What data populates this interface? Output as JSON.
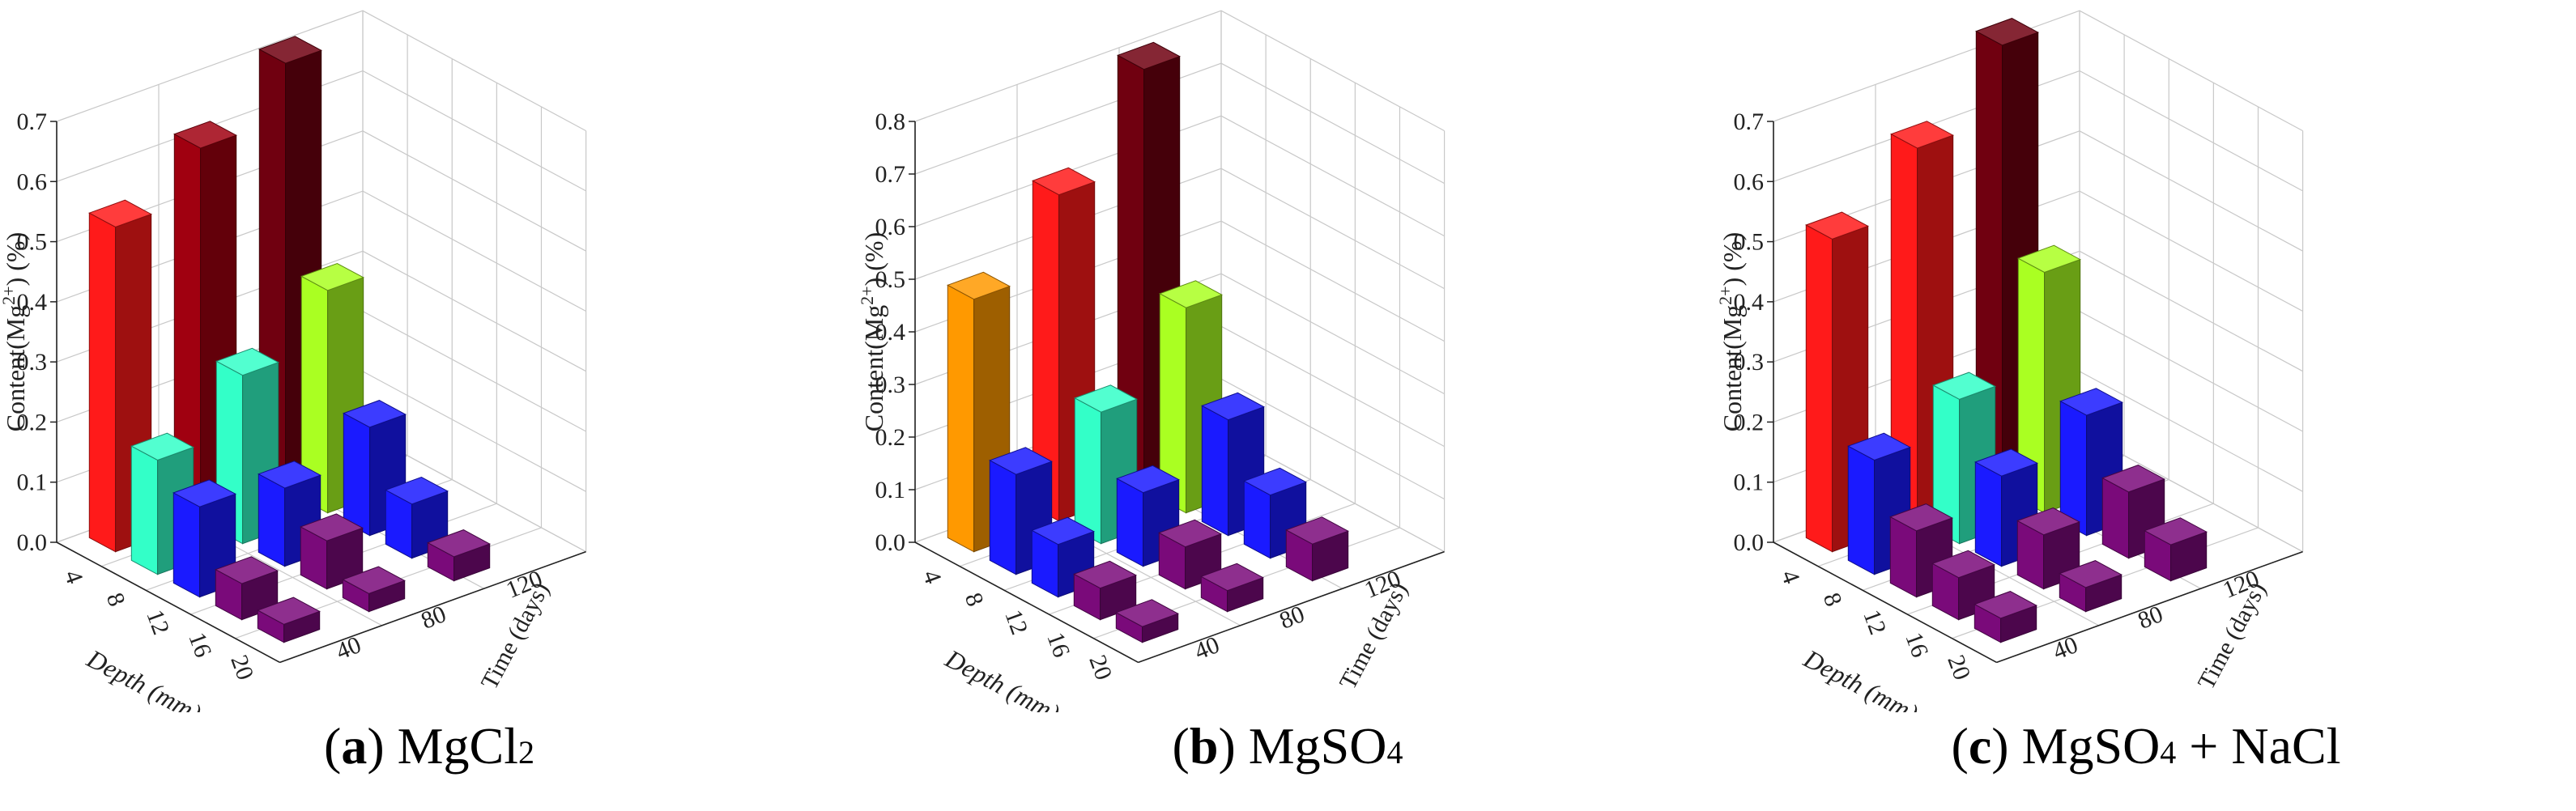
{
  "chart_data": [
    {
      "type": "bar3d",
      "panel_letter": "a",
      "caption_main": "MgCl",
      "caption_sub": "2",
      "caption_rest": "",
      "ylabel": "Content(Mg",
      "ylabel_sup": "2+",
      "ylabel_end": ") (%)",
      "xlabel": "Depth (mm)",
      "zlabel": "Time (days)",
      "ylim": [
        0,
        0.7
      ],
      "yticks": [
        "0.0",
        "0.1",
        "0.2",
        "0.3",
        "0.4",
        "0.5",
        "0.6",
        "0.7"
      ],
      "depth_categories": [
        "4",
        "8",
        "12",
        "16",
        "20"
      ],
      "time_categories": [
        "40",
        "80",
        "120"
      ],
      "grid": true,
      "series": [
        {
          "time": "40",
          "values": [
            0.54,
            0.19,
            0.15,
            0.06,
            0.03
          ],
          "colors": [
            "#ff1a1a",
            "#33ffc8",
            "#1a1aff",
            "#7a0a7a",
            "#7a0a7a"
          ]
        },
        {
          "time": "80",
          "values": [
            0.62,
            0.28,
            0.13,
            0.08,
            0.03
          ],
          "colors": [
            "#a00010",
            "#33ffc8",
            "#1a1aff",
            "#7a0a7a",
            "#7a0a7a"
          ]
        },
        {
          "time": "120",
          "values": [
            0.71,
            0.37,
            0.18,
            0.09,
            0.04
          ],
          "colors": [
            "#700010",
            "#aaff22",
            "#1a1aff",
            "#1a1aff",
            "#7a0a7a"
          ]
        }
      ]
    },
    {
      "type": "bar3d",
      "panel_letter": "b",
      "caption_main": "MgSO",
      "caption_sub": "4",
      "caption_rest": "",
      "ylabel": "Content(Mg",
      "ylabel_sup": "2+",
      "ylabel_end": ") (%)",
      "xlabel": "Depth (mm)",
      "zlabel": "Time (days)",
      "ylim": [
        0,
        0.8
      ],
      "yticks": [
        "0.0",
        "0.1",
        "0.2",
        "0.3",
        "0.4",
        "0.5",
        "0.6",
        "0.7",
        "0.8"
      ],
      "depth_categories": [
        "4",
        "8",
        "12",
        "16",
        "20"
      ],
      "time_categories": [
        "40",
        "80",
        "120"
      ],
      "grid": true,
      "series": [
        {
          "time": "40",
          "values": [
            0.48,
            0.19,
            0.1,
            0.06,
            0.03
          ],
          "colors": [
            "#ff9900",
            "#1a1aff",
            "#1a1aff",
            "#7a0a7a",
            "#7a0a7a"
          ]
        },
        {
          "time": "80",
          "values": [
            0.62,
            0.25,
            0.14,
            0.08,
            0.04
          ],
          "colors": [
            "#ff1a1a",
            "#33ffc8",
            "#1a1aff",
            "#7a0a7a",
            "#7a0a7a"
          ]
        },
        {
          "time": "120",
          "values": [
            0.8,
            0.39,
            0.22,
            0.12,
            0.07
          ],
          "colors": [
            "#700010",
            "#aaff22",
            "#1a1aff",
            "#1a1aff",
            "#7a0a7a"
          ]
        }
      ]
    },
    {
      "type": "bar3d",
      "panel_letter": "c",
      "caption_main": "MgSO",
      "caption_sub": "4",
      "caption_rest": " + NaCl",
      "ylabel": "Content(Mg",
      "ylabel_sup": "2+",
      "ylabel_end": ") (%)",
      "xlabel": "Depth (mm)",
      "zlabel": "Time (days)",
      "ylim": [
        0,
        0.7
      ],
      "yticks": [
        "0.0",
        "0.1",
        "0.2",
        "0.3",
        "0.4",
        "0.5",
        "0.6",
        "0.7"
      ],
      "depth_categories": [
        "4",
        "8",
        "12",
        "16",
        "20"
      ],
      "time_categories": [
        "40",
        "80",
        "120"
      ],
      "grid": true,
      "series": [
        {
          "time": "40",
          "values": [
            0.52,
            0.19,
            0.11,
            0.07,
            0.04
          ],
          "colors": [
            "#ff1a1a",
            "#1a1aff",
            "#7a0a7a",
            "#7a0a7a",
            "#7a0a7a"
          ]
        },
        {
          "time": "80",
          "values": [
            0.62,
            0.24,
            0.15,
            0.09,
            0.04
          ],
          "colors": [
            "#ff1a1a",
            "#33ffc8",
            "#1a1aff",
            "#7a0a7a",
            "#7a0a7a"
          ]
        },
        {
          "time": "120",
          "values": [
            0.74,
            0.4,
            0.2,
            0.11,
            0.06
          ],
          "colors": [
            "#700010",
            "#aaff22",
            "#1a1aff",
            "#7a0a7a",
            "#7a0a7a"
          ]
        }
      ]
    }
  ]
}
